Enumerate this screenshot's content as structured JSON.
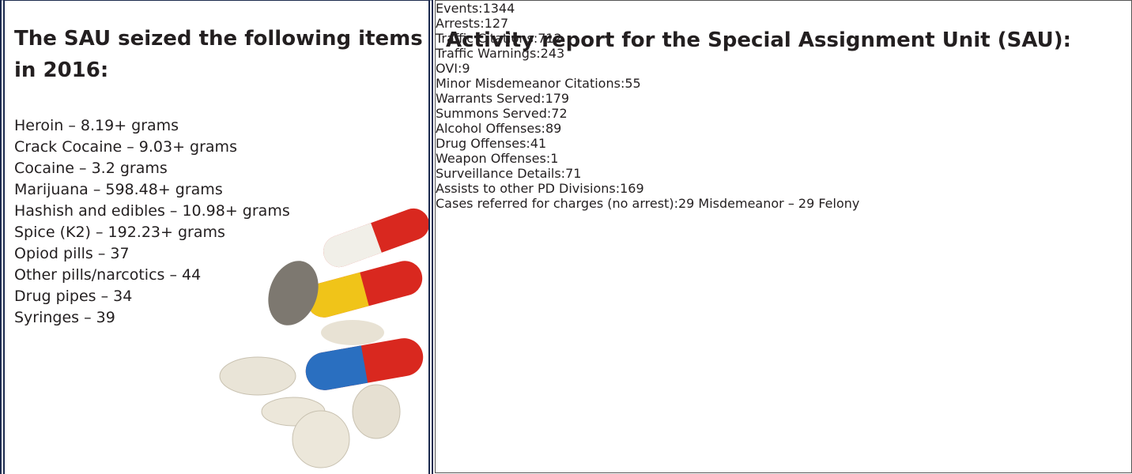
{
  "left_panel": {
    "title": "The SAU seized the following items in 2016:",
    "items": [
      "Heroin – 8.19+ grams",
      "Crack Cocaine – 9.03+ grams",
      "Cocaine – 3.2 grams",
      "Marijuana – 598.48+ grams",
      "Hashish and edibles – 10.98+ grams",
      "Spice (K2) – 192.23+ grams",
      "Opiod pills – 37",
      "Other pills/narcotics – 44",
      "Drug pipes – 34",
      "Syringes – 39"
    ]
  },
  "right_panel": {
    "title": "Activity report for the Special Assignment Unit (SAU):",
    "rows": [
      [
        {
          "label": "Events:",
          "value": "1344"
        },
        {
          "label": "Arrests:",
          "value": "127"
        }
      ],
      [
        {
          "label": "Traffic Citations:",
          "value": "712"
        },
        {
          "label": "Traffic Warnings:",
          "value": "243"
        }
      ],
      [
        {
          "label": "OVI:",
          "value": "9"
        },
        {
          "label": "Minor Misdemeanor Citations:",
          "value": "55"
        }
      ],
      [
        {
          "label": "Warrants Served:",
          "value": "179"
        },
        {
          "label": "Summons Served:",
          "value": "72"
        }
      ],
      [
        {
          "label": "Alcohol Offenses:",
          "value": "89"
        },
        {
          "label": "Drug Offenses:",
          "value": "41"
        }
      ],
      [
        {
          "label": "Weapon Offenses:",
          "value": "1"
        },
        {
          "label": "Surveillance Details:",
          "value": "71"
        }
      ]
    ],
    "assists": {
      "label": "Assists to other PD Divisions:",
      "value": "169"
    },
    "cases": {
      "label": "Cases referred for charges (no arrest):",
      "value": "29 Misdemeanor – 29 Felony"
    }
  }
}
